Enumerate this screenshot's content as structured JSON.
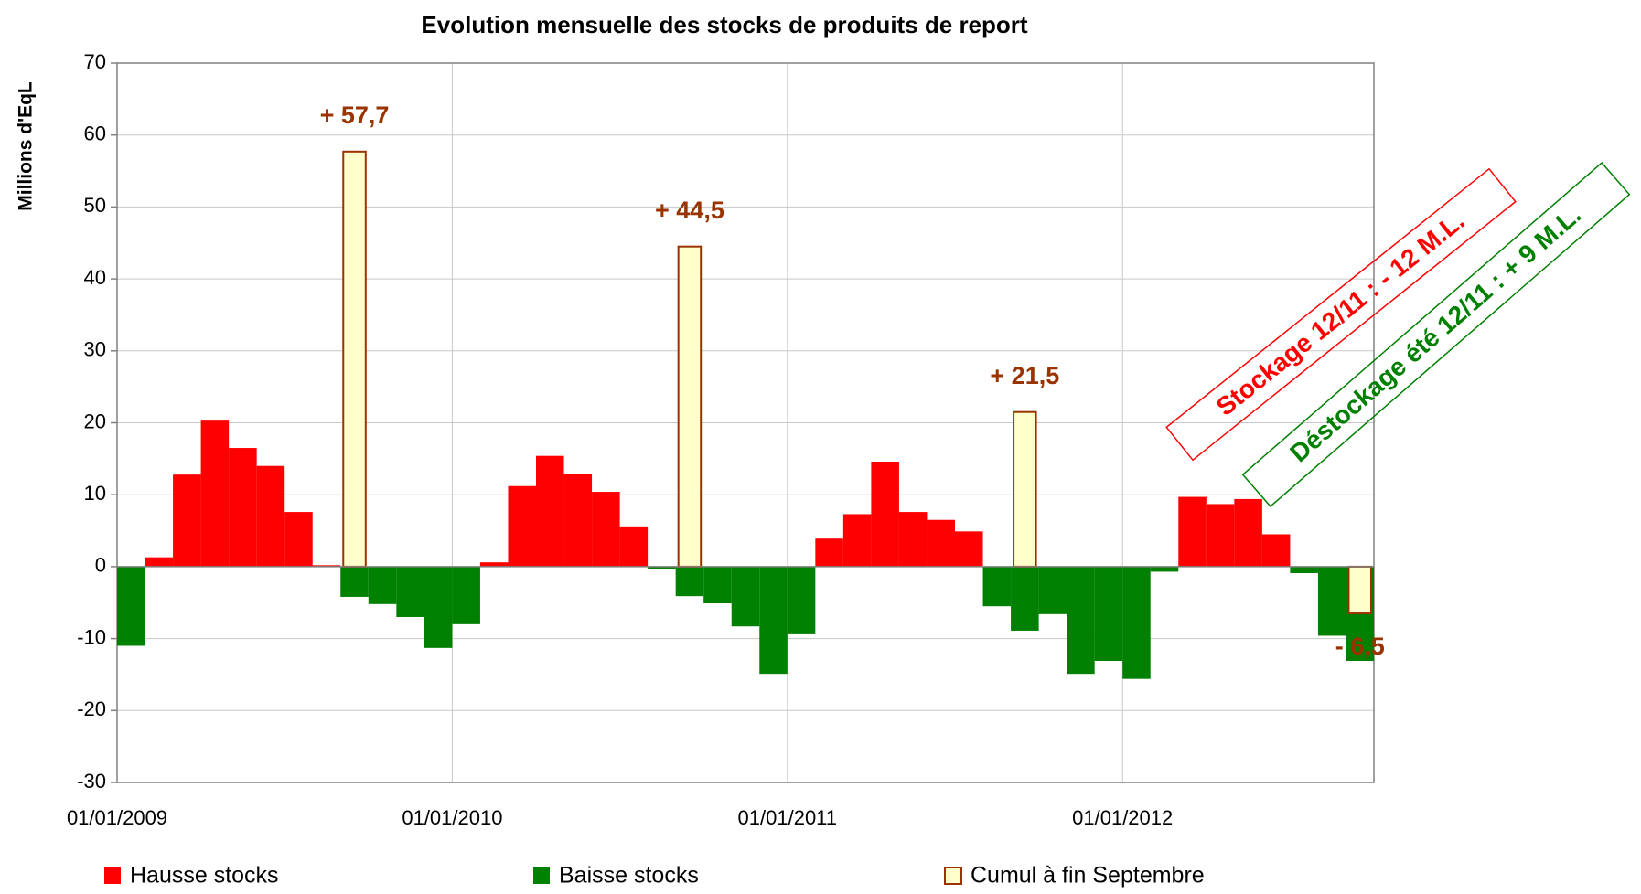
{
  "chart_data": {
    "type": "bar",
    "title": "Evolution mensuelle des stocks de produits de report",
    "y_label": "Millions d'EqL",
    "categories": [
      "01/01/2009",
      null,
      null,
      null,
      null,
      null,
      null,
      null,
      null,
      null,
      null,
      null,
      "01/01/2010",
      null,
      null,
      null,
      null,
      null,
      null,
      null,
      null,
      null,
      null,
      null,
      "01/01/2011",
      null,
      null,
      null,
      null,
      null,
      null,
      null,
      null,
      null,
      null,
      null,
      "01/01/2012",
      null,
      null,
      null,
      null,
      null,
      null,
      null,
      null
    ],
    "series": [
      {
        "name": "Hausse stocks",
        "color": "#ff0000",
        "values": [
          null,
          1.3,
          12.8,
          20.3,
          16.5,
          14,
          7.6,
          0.2,
          null,
          null,
          null,
          null,
          null,
          0.6,
          11.2,
          15.4,
          12.9,
          10.4,
          5.6,
          null,
          null,
          null,
          null,
          null,
          null,
          3.9,
          7.3,
          14.6,
          7.6,
          6.5,
          4.9,
          null,
          null,
          null,
          null,
          null,
          null,
          null,
          9.7,
          8.7,
          9.4,
          4.5,
          null,
          null,
          null
        ]
      },
      {
        "name": "Baisse stocks",
        "color": "#008000",
        "values": [
          -11,
          null,
          null,
          null,
          null,
          null,
          null,
          null,
          -4.2,
          -5.2,
          -7,
          -11.3,
          -8,
          null,
          null,
          null,
          null,
          null,
          null,
          -0.3,
          -4.1,
          -5.1,
          -8.3,
          -14.9,
          -9.4,
          null,
          null,
          null,
          null,
          null,
          null,
          -5.5,
          -8.9,
          -6.6,
          -14.9,
          -13.1,
          -15.6,
          -0.7,
          null,
          null,
          null,
          null,
          -0.9,
          -9.6,
          -13.1
        ]
      },
      {
        "name": "Cumul à fin Septembre",
        "color": "#ffffcc",
        "edge_color": "#993300",
        "label_color": "#993300",
        "values": [
          null,
          null,
          null,
          null,
          null,
          null,
          null,
          null,
          57.7,
          null,
          null,
          null,
          null,
          null,
          null,
          null,
          null,
          null,
          null,
          null,
          44.5,
          null,
          null,
          null,
          null,
          null,
          null,
          null,
          null,
          null,
          null,
          null,
          21.5,
          null,
          null,
          null,
          null,
          null,
          null,
          null,
          null,
          null,
          null,
          null,
          -6.5
        ],
        "value_labels": [
          null,
          null,
          null,
          null,
          null,
          null,
          null,
          null,
          "+ 57,7",
          null,
          null,
          null,
          null,
          null,
          null,
          null,
          null,
          null,
          null,
          null,
          "+ 44,5",
          null,
          null,
          null,
          null,
          null,
          null,
          null,
          null,
          null,
          null,
          null,
          "+ 21,5",
          null,
          null,
          null,
          null,
          null,
          null,
          null,
          null,
          null,
          null,
          null,
          "- 6,5"
        ]
      }
    ],
    "ylim": [
      -30,
      70
    ],
    "yticks": [
      -30,
      -20,
      -10,
      0,
      10,
      20,
      30,
      40,
      50,
      60,
      70
    ],
    "grid": true,
    "annotations": [
      {
        "text": "Stockage 12/11 : - 12 M.L.",
        "color": "#ff0000"
      },
      {
        "text": "Déstockage été 12/11 : + 9 M.L.",
        "color": "#008000"
      }
    ]
  }
}
